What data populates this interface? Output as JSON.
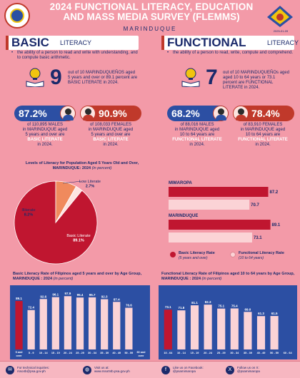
{
  "header": {
    "title_line1": "2024 FUNCTIONAL LITERACY, EDUCATION",
    "title_line2": "AND MASS MEDIA SURVEY (FLEMMS)",
    "location": "MARINDUQUE",
    "logo_date": "2025-01-09"
  },
  "basic": {
    "heading_big": "BASIC",
    "heading_small": "LITERACY",
    "definition": "the ability of a person to read and write with understanding, and to compute basic arithmetic.",
    "big_number": "9",
    "stat_line1": "out of 10 MARINDUQUEÑOS aged",
    "stat_line2": "5 years and over or 89.1 percent are",
    "stat_line3": "BASIC LITERATE in 2024.",
    "male_pct": "87.2%",
    "female_pct": "90.9%",
    "male_l1": "of 110,895 MALES",
    "male_l2": "in MARINDUQUE aged",
    "male_l3": "5 years and over are",
    "male_l4": "BASIC LITERATE",
    "male_l5": "in 2024.",
    "female_l1": "of 108,033 FEMALES",
    "female_l2": "in MARINDUQUE aged",
    "female_l3": "5 years and over are",
    "female_l4": "BASIC LITERATE",
    "female_l5": "in 2024."
  },
  "functional": {
    "heading_big": "FUNCTIONAL",
    "heading_small": "LITERACY",
    "definition": "the ability of a person to read, write, compute and comprehend.",
    "big_number": "7",
    "stat_line1": "out of 10 MARINDUQUEÑOs aged",
    "stat_line2": "aged 10 to 64 years or 73.1",
    "stat_line3": "percent are FUNCTIONAL",
    "stat_line4": "LITERATE in 2024.",
    "male_pct": "68.2%",
    "female_pct": "78.4%",
    "male_l1": "of 88,016 MALES",
    "male_l2": "in MARINDUQUE aged",
    "male_l3": "10 to 64 years are",
    "male_l4": "FUNCTIONAL LITERATE",
    "male_l5": "in 2024.",
    "female_l1": "of 83,910 FEMALES",
    "female_l2": "in MARINDUQUE aged",
    "female_l3": "10 to 64 years are",
    "female_l4": "FUNCTIONAL LITERATE",
    "female_l5": "in 2024."
  },
  "colors": {
    "navy": "#1b2a6b",
    "red": "#c0392b",
    "pink_bg": "#f39aa8",
    "light_pink": "#fde4e0",
    "bar_red": "#c01630",
    "bar_light": "#fbd3d6"
  },
  "chart_data": [
    {
      "type": "pie",
      "title": "Levels of Literacy for Population Aged 5 Years Old and Over, MARINDUQUE: 2024",
      "title_unit": "(in percent)",
      "categories": [
        "Basic Literate",
        "Illiterate",
        "Low Literate"
      ],
      "values": [
        89.1,
        8.2,
        2.7
      ],
      "value_labels": [
        "89.1%",
        "8.2%",
        "2.7%"
      ],
      "colors": [
        "#c01630",
        "#f08a5d",
        "#fde4e0"
      ]
    },
    {
      "type": "bar",
      "orientation": "horizontal",
      "legend_position": "bottom",
      "groups": [
        {
          "name": "MIMAROPA",
          "values": [
            87.2,
            70.7
          ]
        },
        {
          "name": "MARINDUQUE",
          "values": [
            89.1,
            73.1
          ]
        }
      ],
      "series": [
        {
          "name": "Basic Literacy Rate",
          "note": "(5 years and over)",
          "color": "#c01630"
        },
        {
          "name": "Functional Literacy Rate",
          "note": "(10 to 64 years)",
          "color": "#fbd3d6"
        }
      ],
      "xlim": [
        0,
        100
      ]
    },
    {
      "type": "bar",
      "title": "Basic Literacy Rate of Filipinos aged 5 years and over by Age Group, MARINDUQUE : 2024",
      "title_unit": "(in percent)",
      "categories": [
        "5 and over",
        "5 - 9",
        "10 - 14",
        "15 - 19",
        "20 - 24",
        "25 - 29",
        "30 - 34",
        "35 - 39",
        "40 - 49",
        "50 - 59",
        "60 and over"
      ],
      "values": [
        89.1,
        72.4,
        92.6,
        96.1,
        97.9,
        95.4,
        95.7,
        92.3,
        87.4,
        76.6,
        null
      ],
      "highlight_index": 0,
      "ylim": [
        0,
        110
      ]
    },
    {
      "type": "bar",
      "title": "Functional Literacy Rate of Filipinos aged 10 to 64 years by Age Group, MARINDUQUE : 2024",
      "title_unit": "(in percent)",
      "categories": [
        "10 - 64",
        "10 - 14",
        "15 - 19",
        "20 - 24",
        "25 - 29",
        "30 - 34",
        "35 - 39",
        "40 - 49",
        "50 - 59",
        "60 - 64"
      ],
      "values": [
        73.1,
        71.8,
        81.1,
        82.3,
        75.1,
        75.4,
        69.0,
        61.3,
        61.5,
        null
      ],
      "highlight_index": 0,
      "ylim": [
        0,
        110
      ]
    }
  ],
  "footer": {
    "item1_l1": "For technical inquiries:",
    "item1_l2": "rsso4b@psa.gov.ph",
    "item2_l1": "Visit us at:",
    "item2_l2": "www.rsso04b.psa.gov.ph",
    "item3_l1": "Like us on Facebook:",
    "item3_l2": "@psamimaropa",
    "item4_l1": "Follow us on X:",
    "item4_l2": "@psamimaropa",
    "icon1": "mail-icon",
    "icon2": "globe-icon",
    "icon3": "facebook-icon",
    "icon4": "x-icon"
  }
}
